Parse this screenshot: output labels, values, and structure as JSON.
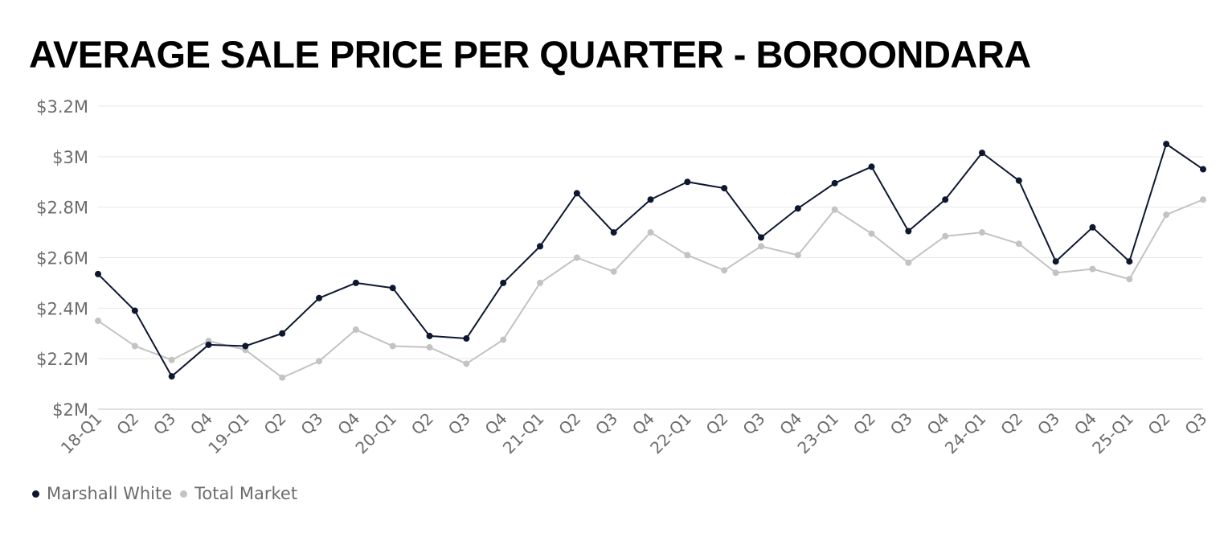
{
  "chart_data": {
    "type": "line",
    "title": "AVERAGE SALE PRICE PER QUARTER - BOROONDARA",
    "xlabel": "",
    "ylabel": "",
    "categories": [
      "18-Q1",
      "Q2",
      "Q3",
      "Q4",
      "19-Q1",
      "Q2",
      "Q3",
      "Q4",
      "20-Q1",
      "Q2",
      "Q3",
      "Q4",
      "21-Q1",
      "Q2",
      "Q3",
      "Q4",
      "22-Q1",
      "Q2",
      "Q3",
      "Q4",
      "23-Q1",
      "Q2",
      "Q3",
      "Q4",
      "24-Q1",
      "Q2",
      "Q3",
      "Q4",
      "25-Q1",
      "Q2",
      "Q3"
    ],
    "y_ticks": [
      2.0,
      2.2,
      2.4,
      2.6,
      2.8,
      3.0,
      3.2
    ],
    "y_tick_labels": [
      "$2M",
      "$2.2M",
      "$2.4M",
      "$2.6M",
      "$2.8M",
      "$3M",
      "$3.2M"
    ],
    "ylim": [
      2.0,
      3.2
    ],
    "grid": true,
    "legend_position": "bottom-left",
    "series": [
      {
        "name": "Marshall White",
        "color": "#0d1730",
        "values": [
          2.535,
          2.39,
          2.13,
          2.255,
          2.25,
          2.3,
          2.44,
          2.5,
          2.48,
          2.29,
          2.28,
          2.5,
          2.645,
          2.855,
          2.7,
          2.83,
          2.9,
          2.875,
          2.68,
          2.795,
          2.895,
          2.96,
          2.705,
          2.83,
          3.015,
          2.905,
          2.585,
          2.72,
          2.585,
          3.05,
          2.95
        ]
      },
      {
        "name": "Total Market",
        "color": "#c3c3c3",
        "values": [
          2.35,
          2.25,
          2.195,
          2.27,
          2.235,
          2.125,
          2.19,
          2.315,
          2.25,
          2.245,
          2.18,
          2.275,
          2.5,
          2.6,
          2.545,
          2.7,
          2.61,
          2.55,
          2.645,
          2.61,
          2.79,
          2.695,
          2.58,
          2.685,
          2.7,
          2.655,
          2.54,
          2.555,
          2.515,
          2.77,
          2.83
        ]
      }
    ]
  },
  "axis_colors": {
    "grid": "#e8e8e8",
    "baseline": "#cfcfcf",
    "tick_text": "#6b6b6b"
  }
}
